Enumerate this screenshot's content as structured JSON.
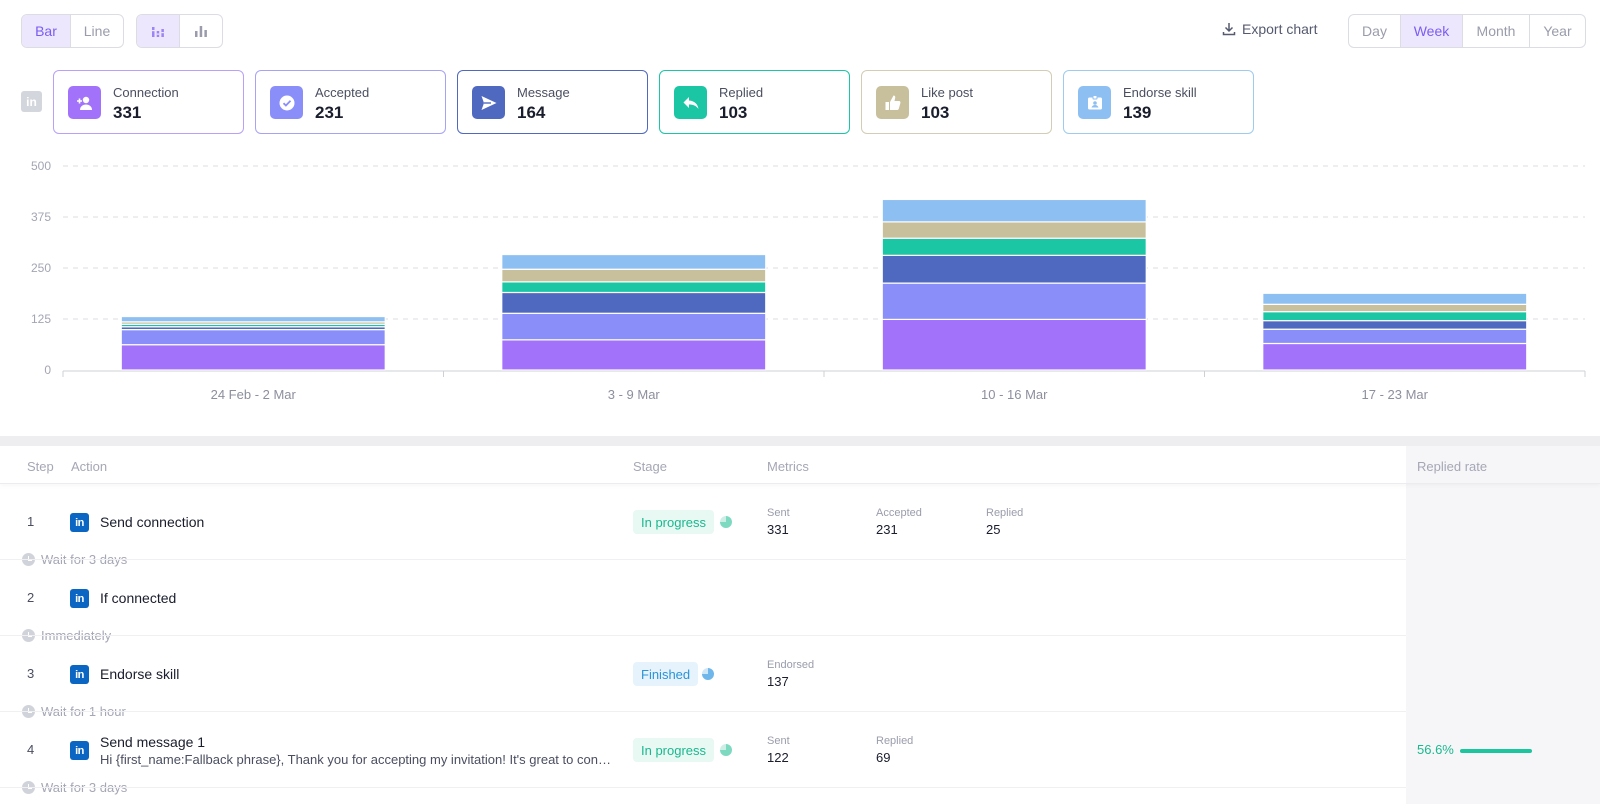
{
  "toolbar": {
    "chart_type": {
      "bar": "Bar",
      "line": "Line",
      "selected": "bar"
    },
    "layout_toggle": {
      "stacked_icon": "stacked-bars-icon",
      "grouped_icon": "grouped-bars-icon",
      "selected": "stacked"
    },
    "export_label": "Export chart",
    "export_icon": "download-icon",
    "periods": [
      "Day",
      "Week",
      "Month",
      "Year"
    ],
    "selected_period": "Week"
  },
  "cards": [
    {
      "label": "Connection",
      "value": "331",
      "icon": "add-user-icon",
      "color": "#a272fb"
    },
    {
      "label": "Accepted",
      "value": "231",
      "icon": "check-circle-icon",
      "color": "#8a8ef8"
    },
    {
      "label": "Message",
      "value": "164",
      "icon": "send-icon",
      "color": "#5069c0"
    },
    {
      "label": "Replied",
      "value": "103",
      "icon": "reply-icon",
      "color": "#1bc6a5"
    },
    {
      "label": "Like post",
      "value": "103",
      "icon": "thumbs-up-icon",
      "color": "#c8bf9c"
    },
    {
      "label": "Endorse skill",
      "value": "139",
      "icon": "badge-icon",
      "color": "#8dbff2"
    }
  ],
  "chart_data": {
    "type": "bar",
    "stacked": true,
    "categories": [
      "24 Feb - 2 Mar",
      "3 - 9 Mar",
      "10 - 16 Mar",
      "17 - 23 Mar"
    ],
    "yticks": [
      "0",
      "125",
      "250",
      "375",
      "500"
    ],
    "ylim": [
      0,
      500
    ],
    "grid": true,
    "series": [
      {
        "name": "Connection",
        "color": "#a272fb",
        "values": [
          62,
          74,
          124,
          65
        ]
      },
      {
        "name": "Accepted",
        "color": "#8a8ef8",
        "values": [
          37,
          65,
          89,
          35
        ]
      },
      {
        "name": "Message",
        "color": "#5069c0",
        "values": [
          7,
          51,
          68,
          21
        ]
      },
      {
        "name": "Replied",
        "color": "#1bc6a5",
        "values": [
          6,
          26,
          42,
          22
        ]
      },
      {
        "name": "Like post",
        "color": "#c8bf9c",
        "values": [
          6,
          31,
          40,
          18
        ]
      },
      {
        "name": "Endorse skill",
        "color": "#8dbff2",
        "values": [
          13,
          36,
          55,
          27
        ]
      }
    ]
  },
  "table": {
    "headers": {
      "step": "Step",
      "action": "Action",
      "stage": "Stage",
      "metrics": "Metrics",
      "rate": "Replied rate"
    },
    "rows": [
      {
        "step": "1",
        "action": "Send connection",
        "stage": "In progress",
        "metrics": [
          {
            "label": "Sent",
            "value": "331"
          },
          {
            "label": "Accepted",
            "value": "231"
          },
          {
            "label": "Replied",
            "value": "25"
          }
        ]
      },
      {
        "step": "2",
        "action": "If connected"
      },
      {
        "step": "3",
        "action": "Endorse skill",
        "stage": "Finished",
        "metrics": [
          {
            "label": "Endorsed",
            "value": "137"
          }
        ]
      },
      {
        "step": "4",
        "action": "Send message 1",
        "subtitle": "Hi {first_name:Fallback phrase}, Thank you for accepting my invitation! It's great to connect with you",
        "stage": "In progress",
        "metrics": [
          {
            "label": "Sent",
            "value": "122"
          },
          {
            "label": "Replied",
            "value": "69"
          }
        ],
        "rate": "56.6%",
        "rate_value": 56.6
      }
    ],
    "waits": [
      "Wait for 3 days",
      "Immediately",
      "Wait for 1 hour",
      "Wait for 3 days"
    ]
  }
}
